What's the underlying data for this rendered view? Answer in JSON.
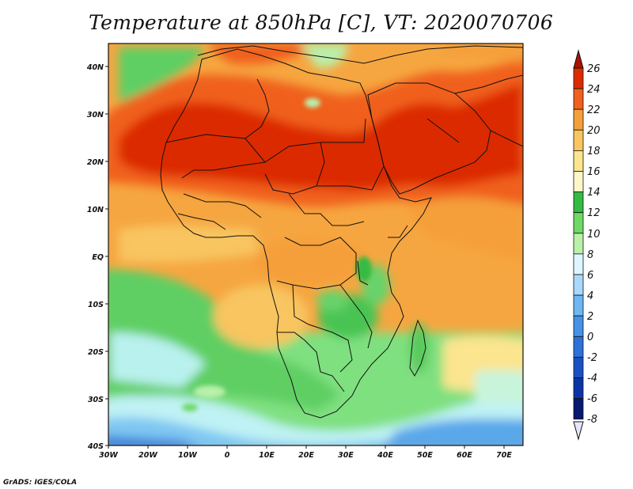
{
  "title": "Temperature at 850hPa [C], VT: 2020070706",
  "footer": "GrADS: IGES/COLA",
  "map": {
    "lon_range": [
      -30,
      76
    ],
    "lat_range": [
      -40,
      46
    ],
    "x_ticks": [
      "30W",
      "20W",
      "10W",
      "0",
      "10E",
      "20E",
      "30E",
      "40E",
      "50E",
      "60E",
      "70E"
    ],
    "y_ticks": [
      "40N",
      "30N",
      "20N",
      "10N",
      "EQ",
      "10S",
      "20S",
      "30S",
      "40S"
    ]
  },
  "colorbar": {
    "labels": [
      "26",
      "24",
      "22",
      "20",
      "18",
      "16",
      "14",
      "12",
      "10",
      "8",
      "6",
      "4",
      "2",
      "0",
      "-2",
      "-4",
      "-6",
      "-8"
    ],
    "colors": [
      "#a81400",
      "#dc2b00",
      "#f0601e",
      "#f59f3a",
      "#f8c560",
      "#fbe58e",
      "#fcf6c8",
      "#34bb43",
      "#6fd966",
      "#b9f0aa",
      "#dff5ff",
      "#a8d9fb",
      "#6eb7f2",
      "#4692e6",
      "#2f71d6",
      "#1b50c4",
      "#0c34a8",
      "#081870",
      "#e6e6ff"
    ]
  }
}
